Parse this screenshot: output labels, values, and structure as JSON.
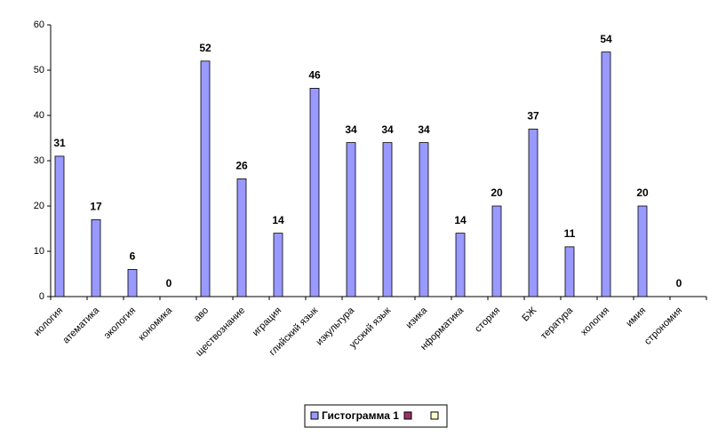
{
  "chart_data": {
    "type": "bar",
    "categories": [
      "иология",
      "атематика",
      "экология",
      "кономика",
      "аво",
      "ществознание",
      "играция",
      "глийский язык",
      "изкультура",
      "усский язык",
      "изика",
      "нформатика",
      "стория",
      "БЖ",
      "тература",
      "хология",
      "имия",
      "строномия"
    ],
    "series": [
      {
        "name": "Гистограмма 1",
        "color": "#9999ff",
        "values": [
          31,
          17,
          6,
          0,
          52,
          26,
          14,
          46,
          34,
          34,
          34,
          14,
          20,
          37,
          11,
          54,
          20,
          0
        ]
      }
    ],
    "ylim": [
      0,
      60
    ],
    "yticks": [
      0,
      10,
      20,
      30,
      40,
      50,
      60
    ],
    "grid": false
  }
}
